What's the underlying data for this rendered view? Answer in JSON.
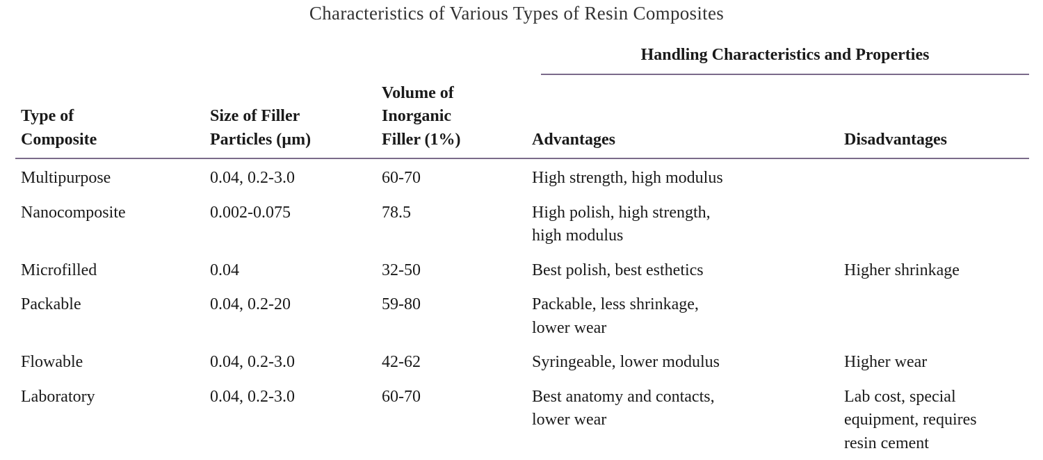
{
  "title": "Characteristics of Various Types of Resin Composites",
  "group_header": "Handling Characteristics and Properties",
  "columns": [
    [
      "Type of",
      "Composite"
    ],
    [
      "Size of Filler",
      "Particles (µm)"
    ],
    [
      "Volume of",
      "Inorganic",
      "Filler (1%)"
    ],
    [
      "Advantages"
    ],
    [
      "Disadvantages"
    ]
  ],
  "rows": [
    {
      "type": [
        "Multipurpose"
      ],
      "size": [
        "0.04, 0.2-3.0"
      ],
      "volume": [
        "60-70"
      ],
      "advantages": [
        "High strength, high modulus"
      ]
    },
    {
      "type": [
        "Nanocomposite"
      ],
      "size": [
        "0.002-0.075"
      ],
      "volume": [
        "78.5"
      ],
      "advantages": [
        "High polish, high strength,",
        "high modulus"
      ]
    },
    {
      "type": [
        "Microfilled"
      ],
      "size": [
        "0.04"
      ],
      "volume": [
        "32-50"
      ],
      "advantages": [
        "Best polish, best esthetics"
      ],
      "disadvantages": [
        "Higher shrinkage"
      ]
    },
    {
      "type": [
        "Packable"
      ],
      "size": [
        "0.04, 0.2-20"
      ],
      "volume": [
        "59-80"
      ],
      "advantages": [
        "Packable, less shrinkage,",
        "lower wear"
      ]
    },
    {
      "type": [
        "Flowable"
      ],
      "size": [
        "0.04, 0.2-3.0"
      ],
      "volume": [
        "42-62"
      ],
      "advantages": [
        "Syringeable, lower modulus"
      ],
      "disadvantages": [
        "Higher wear"
      ]
    },
    {
      "type": [
        "Laboratory"
      ],
      "size": [
        "0.04, 0.2-3.0"
      ],
      "volume": [
        "60-70"
      ],
      "advantages": [
        "Best anatomy and contacts,",
        "lower wear"
      ],
      "disadvantages": [
        "Lab cost, special",
        "equipment, requires",
        "resin cement"
      ]
    }
  ]
}
